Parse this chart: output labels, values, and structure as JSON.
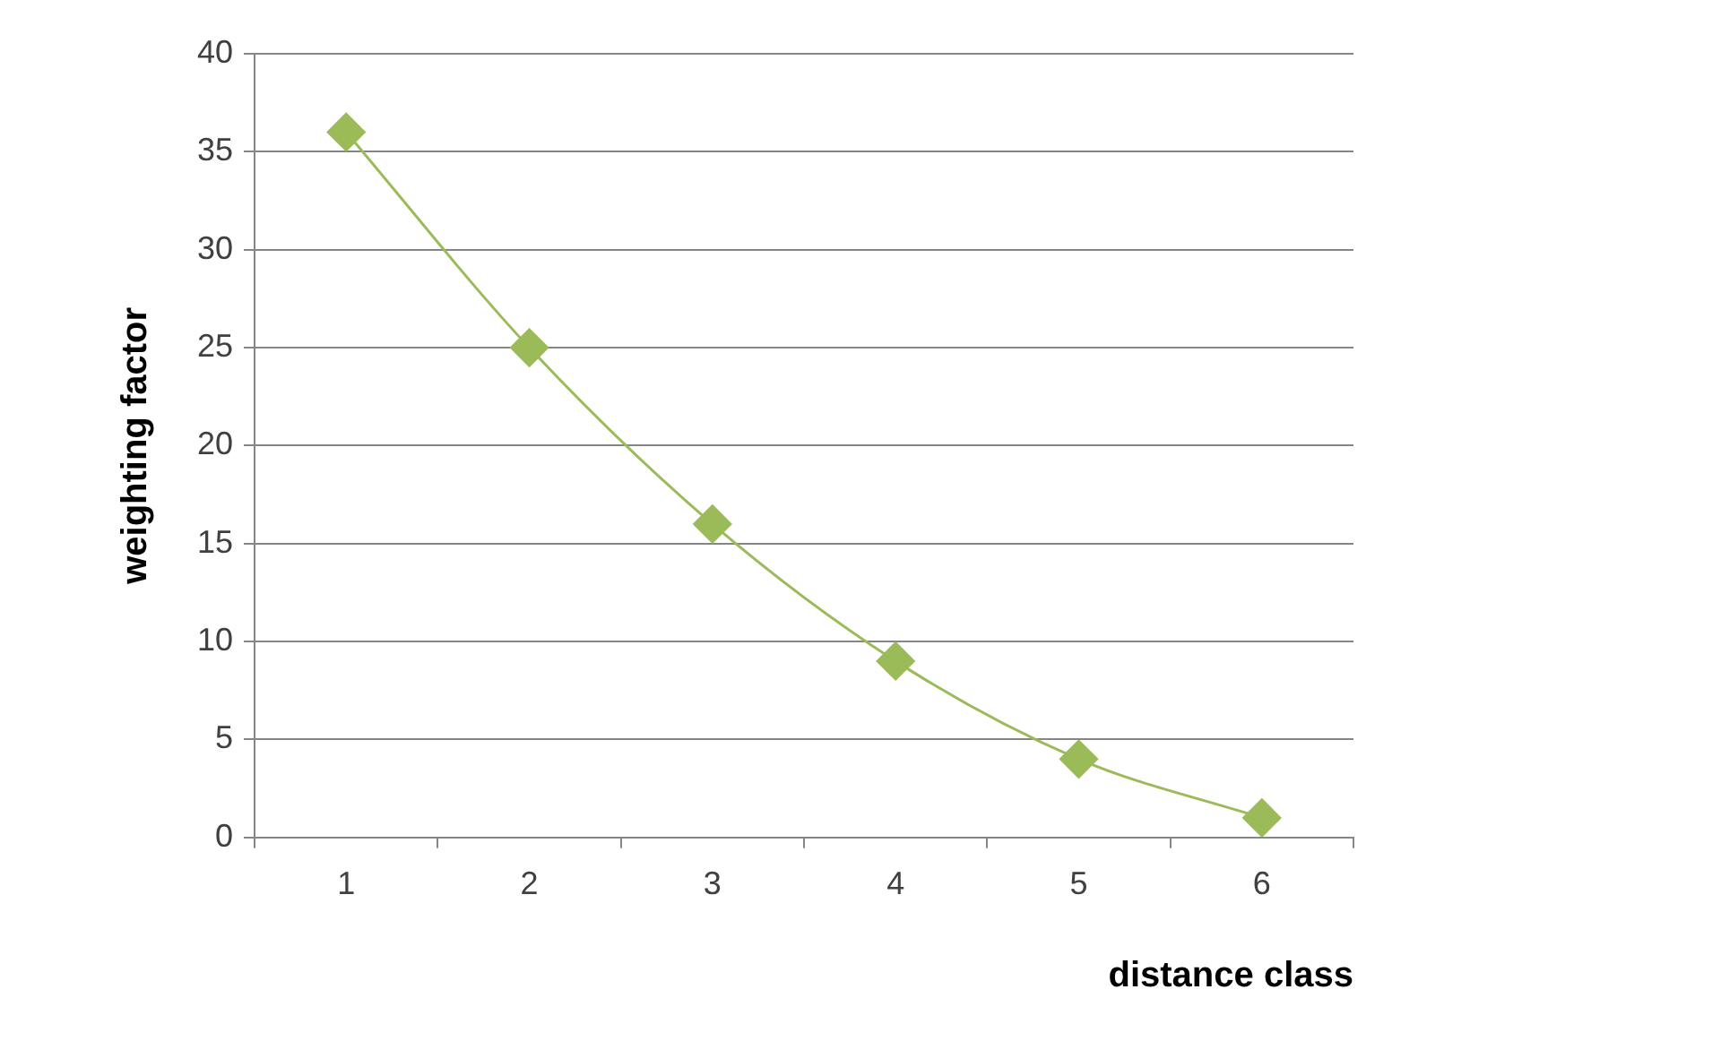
{
  "chart_data": {
    "type": "line",
    "xlabel": "distance class",
    "ylabel": "weighting factor",
    "categories": [
      "1",
      "2",
      "3",
      "4",
      "5",
      "6"
    ],
    "values": [
      36,
      25,
      16,
      9,
      4,
      1
    ],
    "color": "#9bbb59",
    "marker": "diamond",
    "ylim": [
      0,
      40
    ],
    "yticks": [
      0,
      5,
      10,
      15,
      20,
      25,
      30,
      35,
      40
    ],
    "grid": "y"
  }
}
